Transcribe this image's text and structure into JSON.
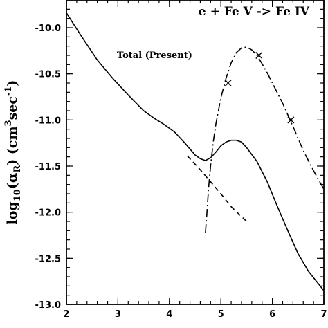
{
  "chart_data": {
    "type": "line",
    "title": "e + Fe V -> Fe IV",
    "ylabel_parts": [
      "log",
      "10",
      "(α",
      "R",
      ") (cm",
      "3",
      "sec",
      "-1",
      ")"
    ],
    "xlabel": "",
    "xlim": [
      2,
      7
    ],
    "ylim": [
      -13.0,
      -9.7
    ],
    "xticks_major": [
      2,
      3,
      4,
      5,
      6,
      7
    ],
    "xtick_labels": [
      "2",
      "3",
      "4",
      "5",
      "6",
      "7"
    ],
    "yticks_major": [
      -13.0,
      -12.5,
      -12.0,
      -11.5,
      -11.0,
      -10.5,
      -10.0
    ],
    "ytick_labels": [
      "-13.0",
      "-12.5",
      "-12.0",
      "-11.5",
      "-11.0",
      "-10.5",
      "-10.0"
    ],
    "annotations": [
      {
        "text": "Total (Present)",
        "x": 2.98,
        "y": -10.33
      }
    ],
    "series": [
      {
        "name": "Total (Present)",
        "style": "solid",
        "x": [
          2.0,
          2.3,
          2.6,
          2.9,
          3.2,
          3.5,
          3.7,
          3.9,
          4.1,
          4.3,
          4.5,
          4.6,
          4.7,
          4.8,
          4.9,
          5.0,
          5.1,
          5.2,
          5.3,
          5.4,
          5.5,
          5.7,
          5.9,
          6.1,
          6.3,
          6.5,
          6.7,
          7.0
        ],
        "y": [
          -9.84,
          -10.1,
          -10.35,
          -10.55,
          -10.73,
          -10.9,
          -10.98,
          -11.05,
          -11.13,
          -11.25,
          -11.38,
          -11.42,
          -11.44,
          -11.41,
          -11.35,
          -11.28,
          -11.24,
          -11.22,
          -11.22,
          -11.24,
          -11.3,
          -11.45,
          -11.67,
          -11.94,
          -12.2,
          -12.45,
          -12.64,
          -12.85
        ]
      },
      {
        "name": "",
        "style": "dashed",
        "x": [
          4.35,
          4.6,
          4.8,
          5.0,
          5.2,
          5.5
        ],
        "y": [
          -11.39,
          -11.54,
          -11.67,
          -11.8,
          -11.94,
          -12.1
        ]
      },
      {
        "name": "",
        "style": "dash-dot",
        "x": [
          4.7,
          4.73,
          4.76,
          4.8,
          4.85,
          4.9,
          5.0,
          5.1,
          5.2,
          5.3,
          5.4,
          5.5,
          5.6,
          5.7,
          5.8,
          5.9,
          6.0,
          6.2,
          6.4,
          6.6,
          6.8,
          7.0
        ],
        "y": [
          -12.22,
          -12.0,
          -11.75,
          -11.5,
          -11.25,
          -11.05,
          -10.76,
          -10.55,
          -10.38,
          -10.27,
          -10.22,
          -10.21,
          -10.24,
          -10.3,
          -10.39,
          -10.49,
          -10.6,
          -10.82,
          -11.07,
          -11.33,
          -11.55,
          -11.75
        ]
      },
      {
        "name": "",
        "style": "markers",
        "x": [
          5.14,
          5.74,
          6.36
        ],
        "y": [
          -10.6,
          -10.3,
          -11.0
        ]
      }
    ]
  }
}
